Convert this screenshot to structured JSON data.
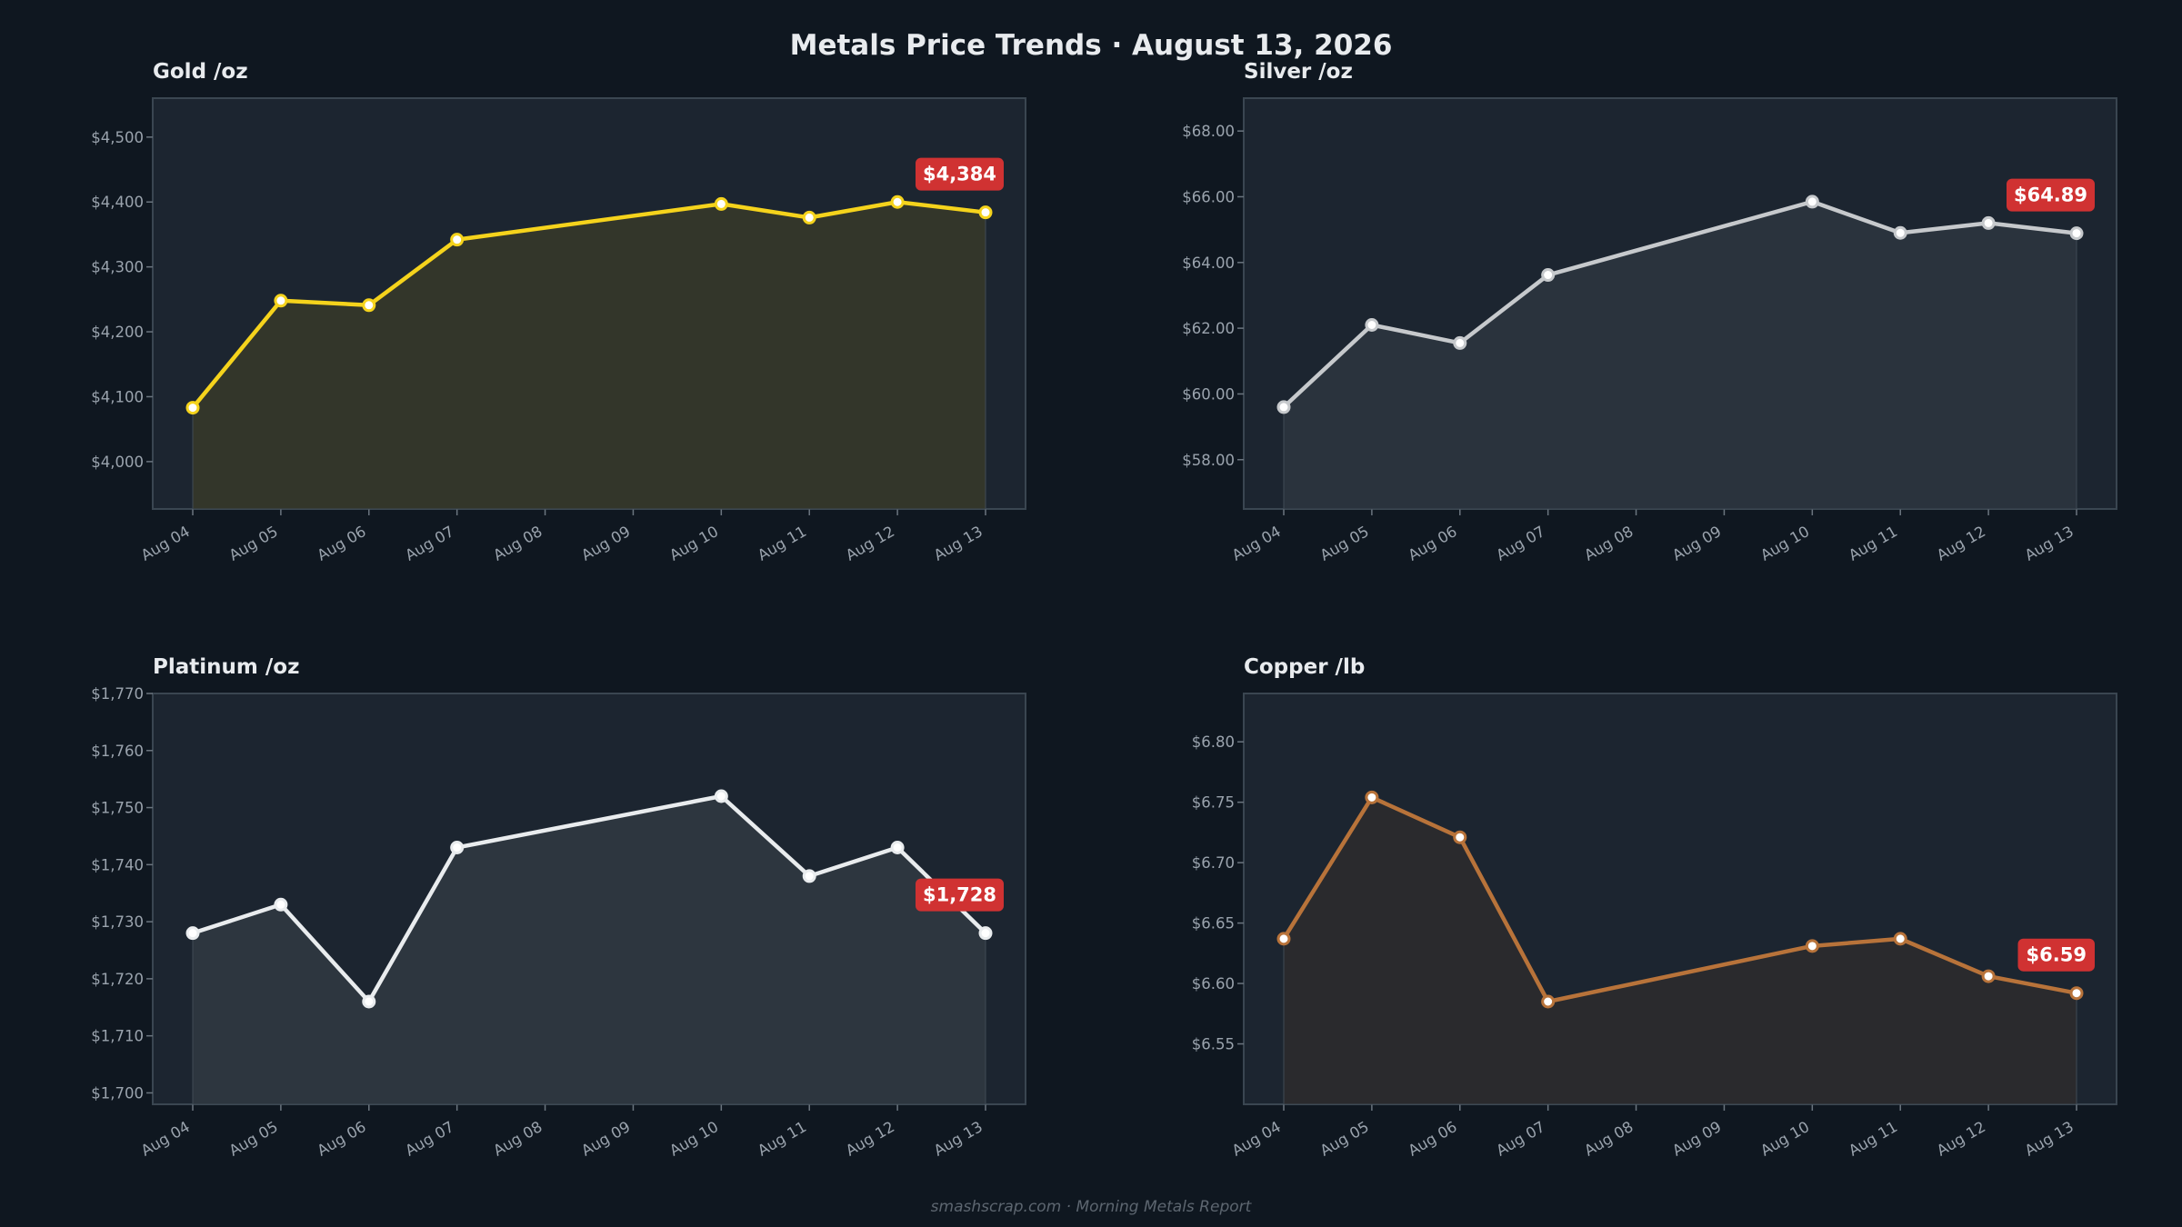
{
  "header": {
    "title": "Metals Price Trends  ·  August 13, 2026"
  },
  "footer": {
    "text": "smashscrap.com  ·  Morning Metals Report"
  },
  "chart_data": [
    {
      "type": "area",
      "title": "Gold  /oz",
      "categories": [
        "Aug 04",
        "Aug 05",
        "Aug 06",
        "Aug 07",
        "Aug 08",
        "Aug 09",
        "Aug 10",
        "Aug 11",
        "Aug 12",
        "Aug 13"
      ],
      "x": [
        "Aug 04",
        "Aug 05",
        "Aug 06",
        "Aug 07",
        "Aug 10",
        "Aug 11",
        "Aug 12",
        "Aug 13"
      ],
      "values": [
        4083,
        4248,
        4241,
        4342,
        4397,
        4376,
        4400,
        4384
      ],
      "ylim": [
        3927,
        4560
      ],
      "yticks": [
        4000,
        4100,
        4200,
        4300,
        4400,
        4500
      ],
      "ytick_labels": [
        "$4,000",
        "$4,100",
        "$4,200",
        "$4,300",
        "$4,400",
        "$4,500"
      ],
      "last_label": "$4,384",
      "line_color": "#f5d31c",
      "fill_color": "#33362a",
      "grid": false
    },
    {
      "type": "area",
      "title": "Silver  /oz",
      "categories": [
        "Aug 04",
        "Aug 05",
        "Aug 06",
        "Aug 07",
        "Aug 08",
        "Aug 09",
        "Aug 10",
        "Aug 11",
        "Aug 12",
        "Aug 13"
      ],
      "x": [
        "Aug 04",
        "Aug 05",
        "Aug 06",
        "Aug 07",
        "Aug 10",
        "Aug 11",
        "Aug 12",
        "Aug 13"
      ],
      "values": [
        59.6,
        62.1,
        61.55,
        63.62,
        65.85,
        64.9,
        65.2,
        64.89
      ],
      "ylim": [
        56.5,
        69.0
      ],
      "yticks": [
        58,
        60,
        62,
        64,
        66,
        68
      ],
      "ytick_labels": [
        "$58.00",
        "$60.00",
        "$62.00",
        "$64.00",
        "$66.00",
        "$68.00"
      ],
      "last_label": "$64.89",
      "line_color": "#c6c9cc",
      "fill_color": "#2a333d",
      "grid": false
    },
    {
      "type": "area",
      "title": "Platinum  /oz",
      "categories": [
        "Aug 04",
        "Aug 05",
        "Aug 06",
        "Aug 07",
        "Aug 08",
        "Aug 09",
        "Aug 10",
        "Aug 11",
        "Aug 12",
        "Aug 13"
      ],
      "x": [
        "Aug 04",
        "Aug 05",
        "Aug 06",
        "Aug 07",
        "Aug 10",
        "Aug 11",
        "Aug 12",
        "Aug 13"
      ],
      "values": [
        1728,
        1733,
        1716,
        1743,
        1752,
        1738,
        1743,
        1728
      ],
      "ylim": [
        1698,
        1770
      ],
      "yticks": [
        1700,
        1710,
        1720,
        1730,
        1740,
        1750,
        1760,
        1770
      ],
      "ytick_labels": [
        "$1,700",
        "$1,710",
        "$1,720",
        "$1,730",
        "$1,740",
        "$1,750",
        "$1,760",
        "$1,770"
      ],
      "last_label": "$1,728",
      "line_color": "#e9ecee",
      "fill_color": "#2d363f",
      "grid": false
    },
    {
      "type": "area",
      "title": "Copper  /lb",
      "categories": [
        "Aug 04",
        "Aug 05",
        "Aug 06",
        "Aug 07",
        "Aug 08",
        "Aug 09",
        "Aug 10",
        "Aug 11",
        "Aug 12",
        "Aug 13"
      ],
      "x": [
        "Aug 04",
        "Aug 05",
        "Aug 06",
        "Aug 07",
        "Aug 10",
        "Aug 11",
        "Aug 12",
        "Aug 13"
      ],
      "values": [
        6.637,
        6.754,
        6.721,
        6.585,
        6.631,
        6.637,
        6.606,
        6.592
      ],
      "ylim": [
        6.5,
        6.84
      ],
      "yticks": [
        6.55,
        6.6,
        6.65,
        6.7,
        6.75,
        6.8
      ],
      "ytick_labels": [
        "$6.55",
        "$6.60",
        "$6.65",
        "$6.70",
        "$6.75",
        "$6.80"
      ],
      "last_label": "$6.59",
      "line_color": "#b8733a",
      "fill_color": "#2a2a2d",
      "grid": false
    }
  ],
  "colors": {
    "background": "#0f1720",
    "panel": "#1c2530",
    "border": "#3a4651",
    "label_bg": "#d03232",
    "tick_text": "#9aa3ad"
  }
}
